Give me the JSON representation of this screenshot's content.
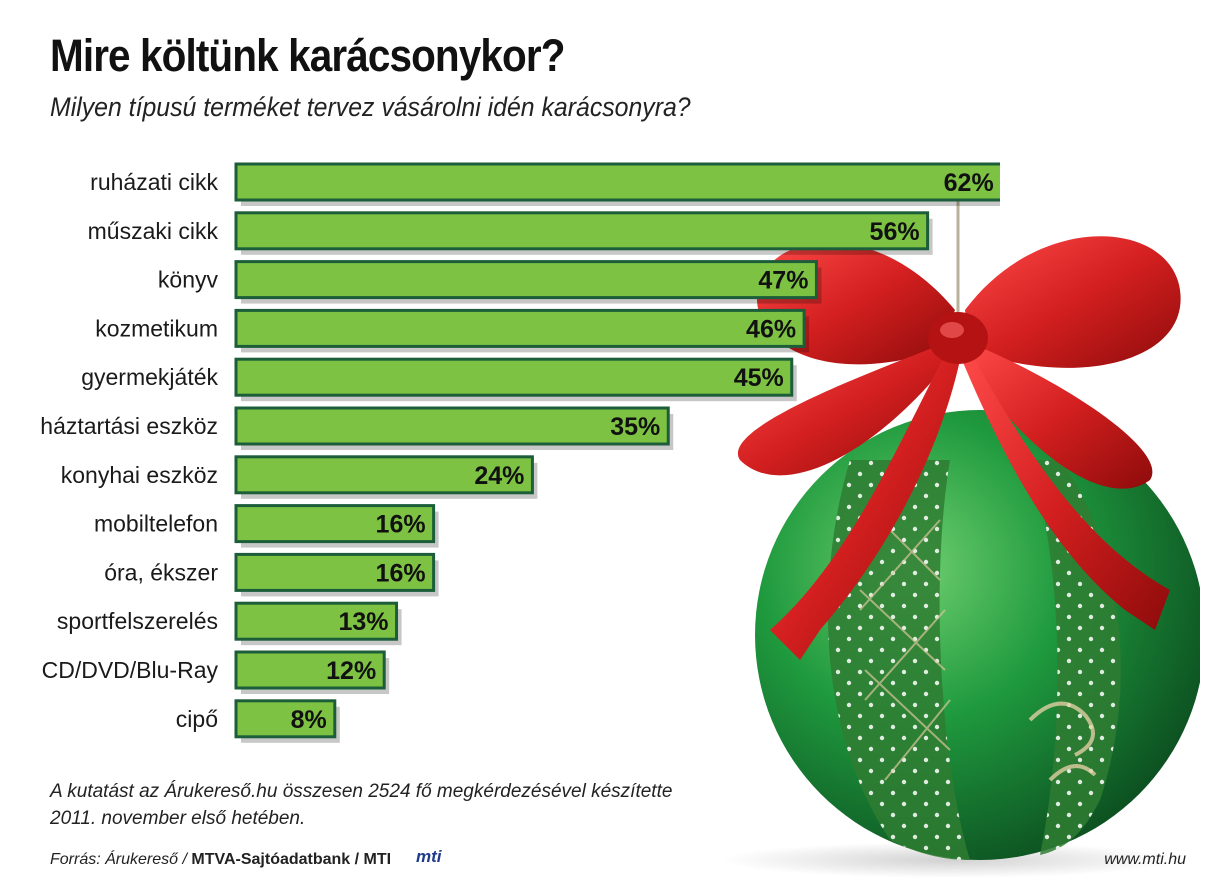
{
  "header": {
    "title": "Mire költünk karácsonykor?",
    "subtitle": "Milyen típusú terméket tervez vásárolni idén karácsonyra?"
  },
  "chart_data": {
    "type": "bar",
    "orientation": "horizontal",
    "categories": [
      "ruházati cikk",
      "műszaki cikk",
      "könyv",
      "kozmetikum",
      "gyermekjáték",
      "háztartási eszköz",
      "konyhai eszköz",
      "mobiltelefon",
      "óra, ékszer",
      "sportfelszerelés",
      "CD/DVD/Blu-Ray",
      "cipő"
    ],
    "values": [
      62,
      56,
      47,
      46,
      45,
      35,
      24,
      16,
      16,
      13,
      12,
      8
    ],
    "value_labels": [
      "62%",
      "56%",
      "47%",
      "46%",
      "45%",
      "35%",
      "24%",
      "16%",
      "16%",
      "13%",
      "12%",
      "8%"
    ],
    "unit": "%",
    "bar_color": "#7dc242",
    "bar_border_color": "#1c5e3a",
    "grid": false
  },
  "notes": {
    "survey_line1": "A kutatást az Árukereső.hu összesen 2524 fő megkérdezésével készítette",
    "survey_line2": "2011. november első hetében."
  },
  "footer": {
    "source_prefix": "Forrás: Árukereső / ",
    "source_bold": "MTVA-Sajtóadatbank / MTI",
    "logo_text": "mti",
    "website": "www.mti.hu"
  }
}
